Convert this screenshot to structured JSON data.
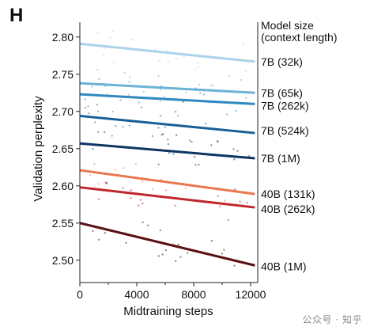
{
  "panel_label": "H",
  "watermark": "公众号 · 知乎",
  "chart_data": {
    "type": "line",
    "xlabel": "Midtraining steps",
    "ylabel": "Validation perplexity",
    "legend_title": [
      "Model size",
      "(context length)"
    ],
    "xlim": [
      0,
      12500
    ],
    "ylim": [
      2.47,
      2.82
    ],
    "x_ticks": [
      0,
      4000,
      8000,
      12000
    ],
    "y_ticks": [
      2.5,
      2.55,
      2.6,
      2.65,
      2.7,
      2.75,
      2.8
    ],
    "y_tick_labels": [
      "2.50",
      "2.55",
      "2.60",
      "2.65",
      "2.70",
      "2.75",
      "2.80"
    ],
    "grid": false,
    "legend_placement": "right, labels at line ends",
    "series": [
      {
        "name": "7B (32k)",
        "color": "#a9d3e8",
        "values": [
          2.791,
          2.767
        ],
        "label_y": 2.767
      },
      {
        "name": "7B (65k)",
        "color": "#6bb2d6",
        "values": [
          2.738,
          2.725
        ],
        "label_y": 2.725
      },
      {
        "name": "7B (262k)",
        "color": "#2f88c0",
        "values": [
          2.723,
          2.71
        ],
        "label_y": 2.708
      },
      {
        "name": "7B (524k)",
        "color": "#185f97",
        "values": [
          2.694,
          2.671
        ],
        "label_y": 2.674
      },
      {
        "name": "7B (1M)",
        "color": "#0d3563",
        "values": [
          2.657,
          2.637
        ],
        "label_y": 2.637
      },
      {
        "name": "40B (131k)",
        "color": "#ec7650",
        "values": [
          2.621,
          2.589
        ],
        "label_y": 2.589
      },
      {
        "name": "40B (262k)",
        "color": "#c0262b",
        "values": [
          2.598,
          2.571
        ],
        "label_y": 2.569
      },
      {
        "name": "40B (1M)",
        "color": "#5a0f14",
        "values": [
          2.55,
          2.493
        ],
        "label_y": 2.492
      }
    ],
    "x": [
      0,
      12300
    ]
  }
}
